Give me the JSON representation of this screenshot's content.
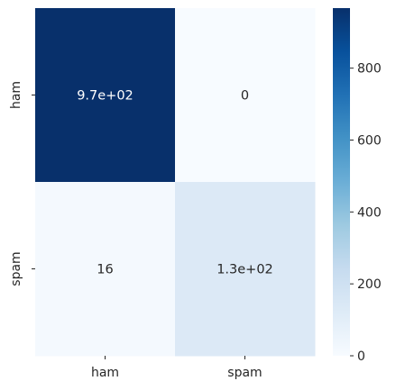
{
  "chart_data": {
    "type": "heatmap",
    "title": "",
    "xlabel": "",
    "ylabel": "",
    "x_categories": [
      "ham",
      "spam"
    ],
    "y_categories": [
      "ham",
      "spam"
    ],
    "values": [
      [
        967,
        0
      ],
      [
        16,
        133
      ]
    ],
    "annotations": [
      [
        "9.7e+02",
        "0"
      ],
      [
        "16",
        "1.3e+02"
      ]
    ],
    "colormap": "Blues",
    "colorbar": {
      "range": [
        0,
        967
      ],
      "ticks": [
        0,
        200,
        400,
        600,
        800
      ],
      "tick_labels": [
        "0",
        "200",
        "400",
        "600",
        "800"
      ]
    },
    "colors": {
      "low": "#f7fbff",
      "high": "#08306b",
      "annotation_on_light": "#262626",
      "annotation_on_dark": "#ffffff"
    }
  }
}
